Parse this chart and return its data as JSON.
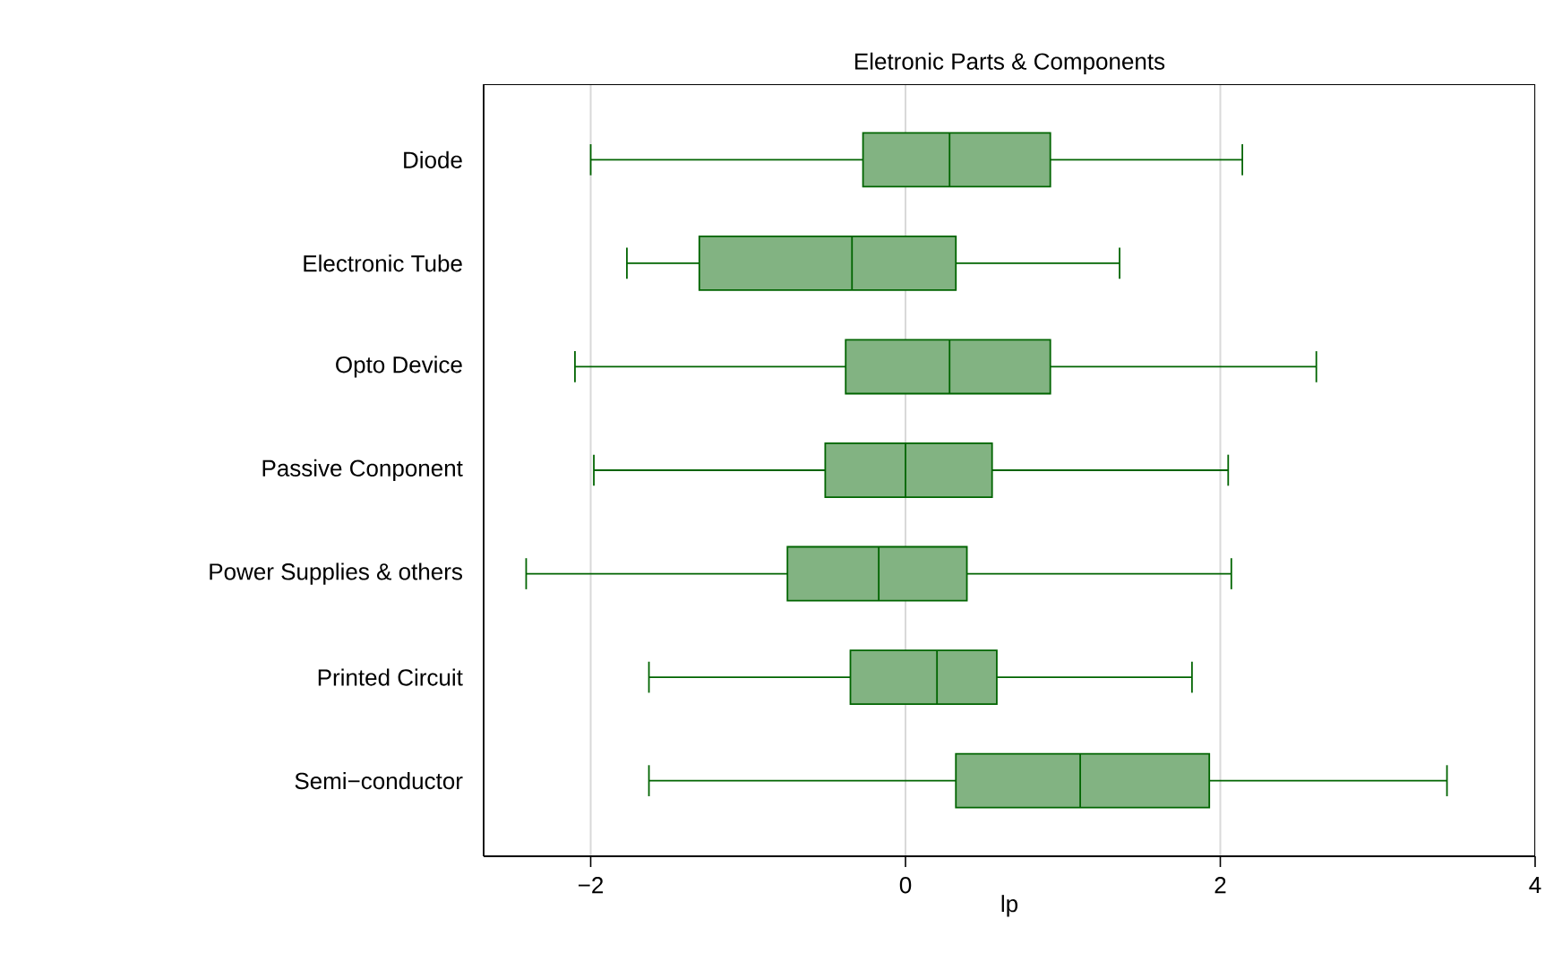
{
  "chart_data": {
    "type": "box",
    "title": "Eletronic Parts & Components",
    "xlabel": "lp",
    "orientation": "horizontal",
    "categories": [
      "Diode",
      "Electronic Tube",
      "Opto Device",
      "Passive Conponent",
      "Power Supplies & others",
      "Printed Circuit",
      "Semi−conductor"
    ],
    "boxes": [
      {
        "low": -2.0,
        "q1": -0.27,
        "median": 0.28,
        "q3": 0.92,
        "high": 2.14
      },
      {
        "low": -1.77,
        "q1": -1.31,
        "median": -0.34,
        "q3": 0.32,
        "high": 1.36
      },
      {
        "low": -2.1,
        "q1": -0.38,
        "median": 0.28,
        "q3": 0.92,
        "high": 2.61
      },
      {
        "low": -1.98,
        "q1": -0.51,
        "median": 0.0,
        "q3": 0.55,
        "high": 2.05
      },
      {
        "low": -2.41,
        "q1": -0.75,
        "median": -0.17,
        "q3": 0.39,
        "high": 2.07
      },
      {
        "low": -1.63,
        "q1": -0.35,
        "median": 0.2,
        "q3": 0.58,
        "high": 1.82
      },
      {
        "low": -1.63,
        "q1": 0.32,
        "median": 1.11,
        "q3": 1.93,
        "high": 3.44
      }
    ],
    "color": "#006400",
    "xlim": [
      -2.68,
      4.0
    ],
    "xticks": [
      {
        "value": -2,
        "label": "−2"
      },
      {
        "value": 0,
        "label": "0"
      },
      {
        "value": 2,
        "label": "2"
      },
      {
        "value": 4,
        "label": "4"
      }
    ],
    "grid": "x"
  }
}
